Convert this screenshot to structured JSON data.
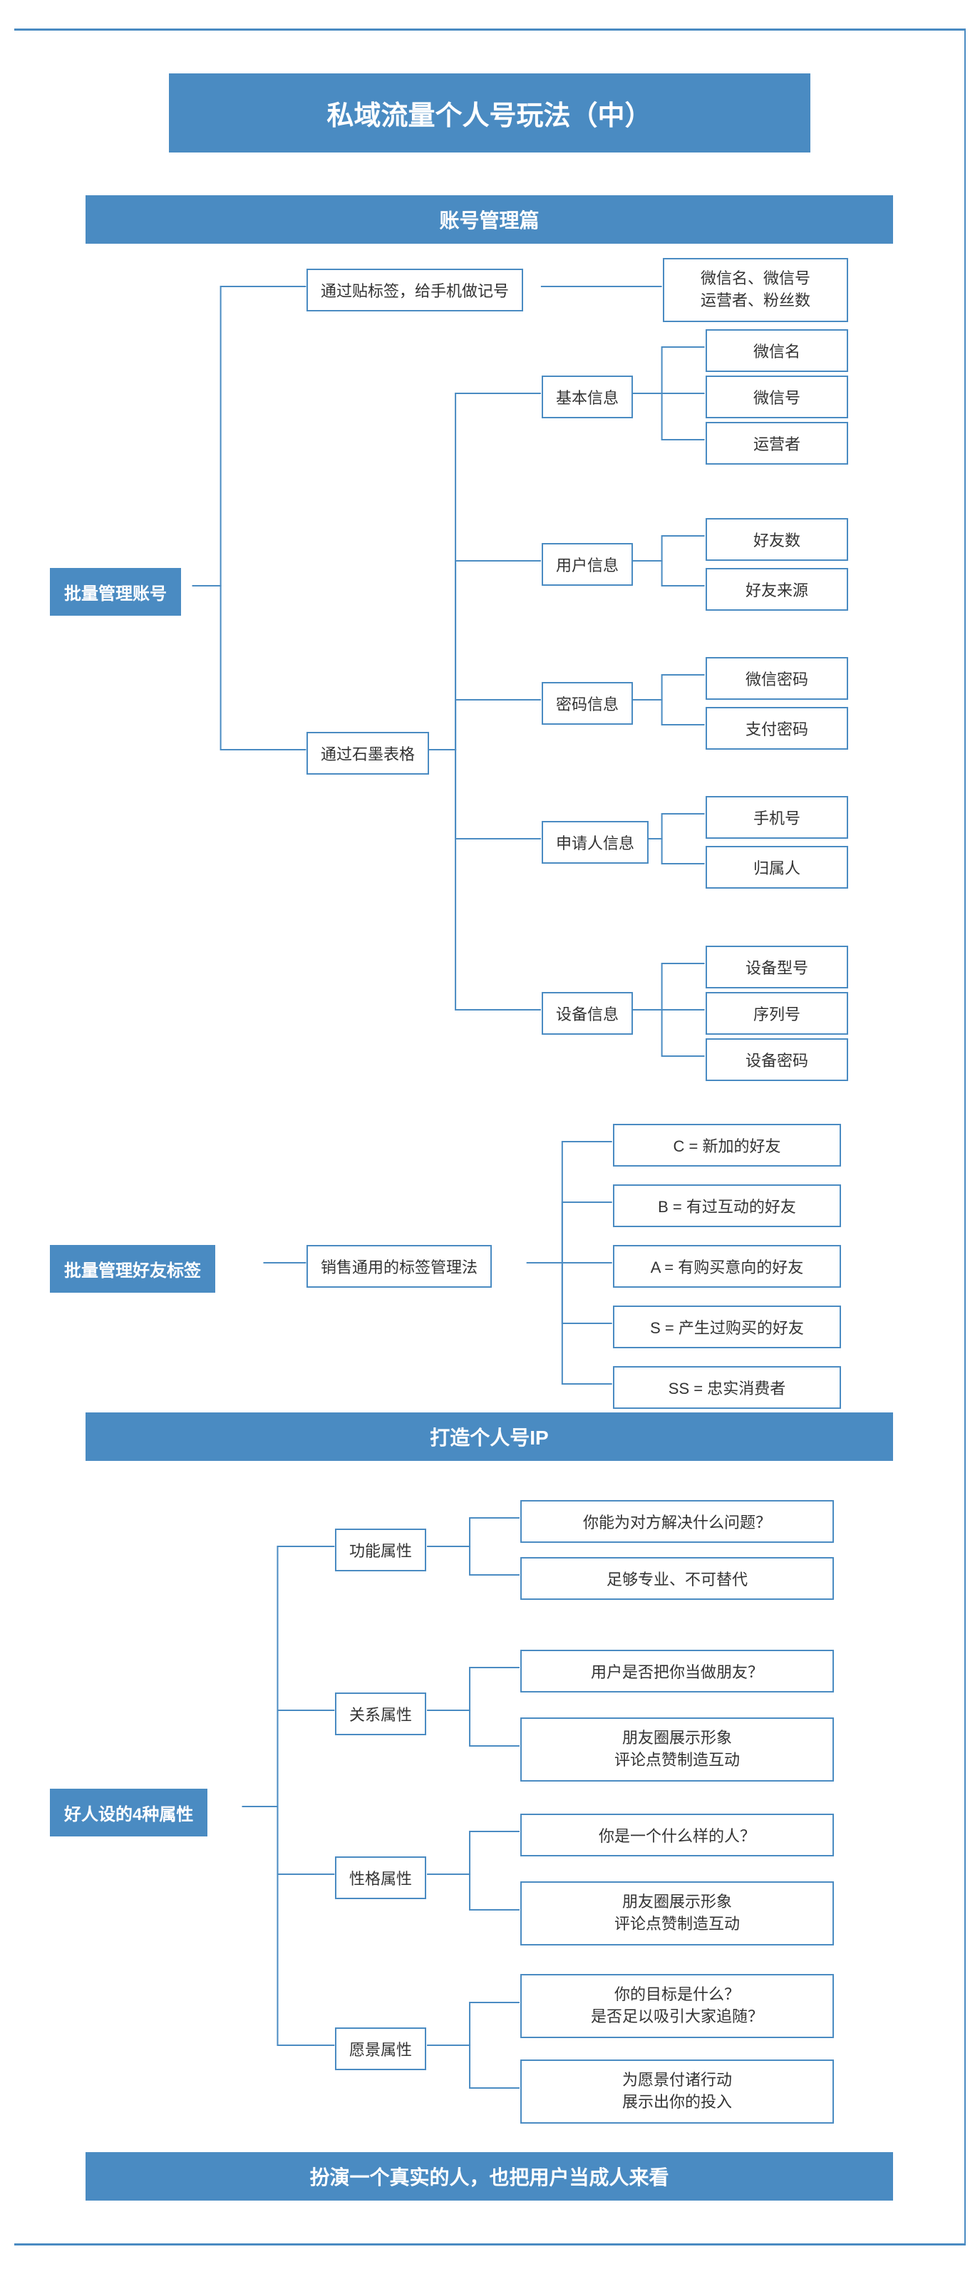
{
  "title": "私域流量个人号玩法（中）",
  "colors": {
    "primary": "#4a8bc2",
    "border": "#4a8bc2",
    "text_on_primary": "#ffffff",
    "text": "#333333",
    "background": "#ffffff"
  },
  "typography": {
    "title_fontsize": 38,
    "section_fontsize": 28,
    "root_fontsize": 24,
    "node_fontsize": 22,
    "font_family": "Microsoft YaHei"
  },
  "diagram": {
    "type": "tree",
    "sections": [
      {
        "header": "账号管理篇",
        "roots": [
          {
            "label": "批量管理账号",
            "children": [
              {
                "label": "通过贴标签，给手机做记号",
                "children": [
                  {
                    "label": "微信名、微信号\n运营者、粉丝数"
                  }
                ]
              },
              {
                "label": "通过石墨表格",
                "children": [
                  {
                    "label": "基本信息",
                    "children": [
                      {
                        "label": "微信名"
                      },
                      {
                        "label": "微信号"
                      },
                      {
                        "label": "运营者"
                      }
                    ]
                  },
                  {
                    "label": "用户信息",
                    "children": [
                      {
                        "label": "好友数"
                      },
                      {
                        "label": "好友来源"
                      }
                    ]
                  },
                  {
                    "label": "密码信息",
                    "children": [
                      {
                        "label": "微信密码"
                      },
                      {
                        "label": "支付密码"
                      }
                    ]
                  },
                  {
                    "label": "申请人信息",
                    "children": [
                      {
                        "label": "手机号"
                      },
                      {
                        "label": "归属人"
                      }
                    ]
                  },
                  {
                    "label": "设备信息",
                    "children": [
                      {
                        "label": "设备型号"
                      },
                      {
                        "label": "序列号"
                      },
                      {
                        "label": "设备密码"
                      }
                    ]
                  }
                ]
              }
            ]
          },
          {
            "label": "批量管理好友标签",
            "children": [
              {
                "label": "销售通用的标签管理法",
                "children": [
                  {
                    "label": "C = 新加的好友"
                  },
                  {
                    "label": "B = 有过互动的好友"
                  },
                  {
                    "label": "A = 有购买意向的好友"
                  },
                  {
                    "label": "S = 产生过购买的好友"
                  },
                  {
                    "label": "SS = 忠实消费者"
                  }
                ]
              }
            ]
          }
        ]
      },
      {
        "header": "打造个人号IP",
        "roots": [
          {
            "label": "好人设的4种属性",
            "children": [
              {
                "label": "功能属性",
                "children": [
                  {
                    "label": "你能为对方解决什么问题？"
                  },
                  {
                    "label": "足够专业、不可替代"
                  }
                ]
              },
              {
                "label": "关系属性",
                "children": [
                  {
                    "label": "用户是否把你当做朋友？"
                  },
                  {
                    "label": "朋友圈展示形象\n评论点赞制造互动"
                  }
                ]
              },
              {
                "label": "性格属性",
                "children": [
                  {
                    "label": "你是一个什么样的人？"
                  },
                  {
                    "label": "朋友圈展示形象\n评论点赞制造互动"
                  }
                ]
              },
              {
                "label": "愿景属性",
                "children": [
                  {
                    "label": "你的目标是什么？\n是否足以吸引大家追随？"
                  },
                  {
                    "label": "为愿景付诸行动\n展示出你的投入"
                  }
                ]
              }
            ]
          }
        ],
        "footer": "扮演一个真实的人，也把用户当成人来看"
      }
    ]
  }
}
